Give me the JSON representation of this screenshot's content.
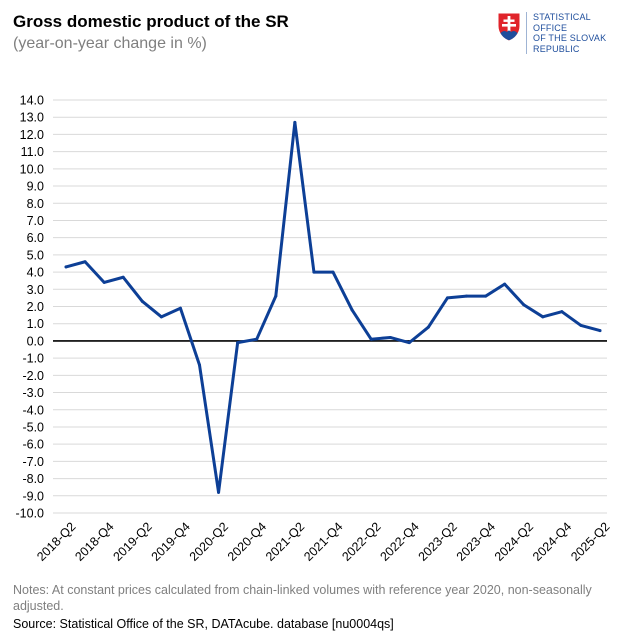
{
  "header": {
    "title": "Gross domestic product of the SR",
    "subtitle": "(year-on-year change in %)"
  },
  "logo": {
    "icon": "slovak-coat-of-arms-icon",
    "lines": [
      "STATISTICAL",
      "OFFICE",
      "OF THE SLOVAK",
      "REPUBLIC"
    ]
  },
  "footer": {
    "notes": "Notes: At constant prices calculated from chain-linked volumes with reference year 2020, non-seasonally adjusted.",
    "source": "Source: Statistical Office of the SR, DATAcube. database [nu0004qs]"
  },
  "colors": {
    "line": "#0d3f96",
    "grid": "#d9d9d9",
    "zero_line": "#000000",
    "logo_blue": "#1f4e9c",
    "logo_red": "#e0242b"
  },
  "chart_data": {
    "type": "line",
    "x": [
      "2018-Q2",
      "2018-Q3",
      "2018-Q4",
      "2019-Q1",
      "2019-Q2",
      "2019-Q3",
      "2019-Q4",
      "2020-Q1",
      "2020-Q2",
      "2020-Q3",
      "2020-Q4",
      "2021-Q1",
      "2021-Q2",
      "2021-Q3",
      "2021-Q4",
      "2022-Q1",
      "2022-Q2",
      "2022-Q3",
      "2022-Q4",
      "2023-Q1",
      "2023-Q2",
      "2023-Q3",
      "2023-Q4",
      "2024-Q1",
      "2024-Q2",
      "2024-Q3",
      "2024-Q4",
      "2025-Q1",
      "2025-Q2"
    ],
    "x_tick_labels": [
      "2018-Q2",
      "2018-Q4",
      "2019-Q2",
      "2019-Q4",
      "2020-Q2",
      "2020-Q4",
      "2021-Q2",
      "2021-Q4",
      "2022-Q2",
      "2022-Q4",
      "2023-Q2",
      "2023-Q4",
      "2024-Q2",
      "2024-Q4",
      "2025-Q2"
    ],
    "series": [
      {
        "values": [
          4.3,
          4.6,
          3.4,
          3.7,
          2.3,
          1.4,
          1.9,
          -1.4,
          -8.8,
          -0.1,
          0.1,
          2.6,
          12.7,
          4.0,
          4.0,
          1.8,
          0.1,
          0.2,
          -0.1,
          0.8,
          2.5,
          2.6,
          2.6,
          3.3,
          2.1,
          1.4,
          1.7,
          0.9,
          0.6
        ]
      }
    ],
    "y_ticks": [
      "14.0",
      "13.0",
      "12.0",
      "11.0",
      "10.0",
      "9.0",
      "8.0",
      "7.0",
      "6.0",
      "5.0",
      "4.0",
      "3.0",
      "2.0",
      "1.0",
      "0.0",
      "-1.0",
      "-2.0",
      "-3.0",
      "-4.0",
      "-5.0",
      "-6.0",
      "-7.0",
      "-8.0",
      "-9.0",
      "-10.0"
    ],
    "ylim": [
      -10,
      14
    ],
    "y_step": 1,
    "grid": true,
    "legend": false
  }
}
